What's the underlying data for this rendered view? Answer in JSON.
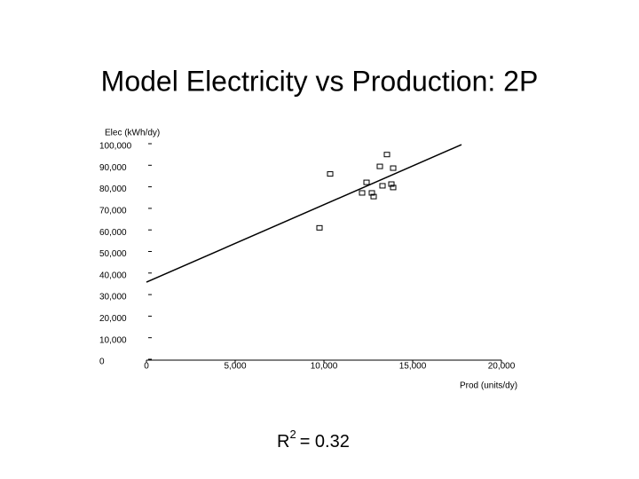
{
  "chart_data": {
    "type": "scatter",
    "title": "Model Electricity vs Production: 2P",
    "y_label": "Elec (kWh/dy)",
    "x_label": "Prod (units/dy)",
    "xlim": [
      0,
      20000
    ],
    "ylim": [
      0,
      100000
    ],
    "xticks": [
      0,
      {
        "value": 5000,
        "label": "5,000"
      },
      {
        "value": 10000,
        "label": "10,000"
      },
      {
        "value": 15000,
        "label": "15,000"
      },
      {
        "value": 20000,
        "label": "20,000"
      }
    ],
    "yticks": [
      0,
      {
        "value": 10000,
        "label": "10,000"
      },
      {
        "value": 20000,
        "label": "20,000"
      },
      {
        "value": 30000,
        "label": "30,000"
      },
      {
        "value": 40000,
        "label": "40,000"
      },
      {
        "value": 50000,
        "label": "50,000"
      },
      {
        "value": 60000,
        "label": "60,000"
      },
      {
        "value": 70000,
        "label": "70,000"
      },
      {
        "value": 80000,
        "label": "80,000"
      },
      {
        "value": 90000,
        "label": "90,000"
      },
      {
        "value": 100000,
        "label": "100,000"
      }
    ],
    "color": "#000000",
    "x": [
      9750,
      10350,
      13550,
      13150,
      13900,
      12400,
      13300,
      13800,
      13900,
      12150,
      12700,
      12800
    ],
    "values": [
      62000,
      87000,
      96000,
      90500,
      89700,
      83100,
      81500,
      82300,
      80700,
      78200,
      78200,
      76500
    ],
    "trendline": {
      "x": [
        0,
        17750
      ],
      "values": [
        37000,
        100800
      ]
    },
    "annotation": {
      "symbol": "R",
      "exponent": "2",
      "text": "= 0.32"
    }
  }
}
